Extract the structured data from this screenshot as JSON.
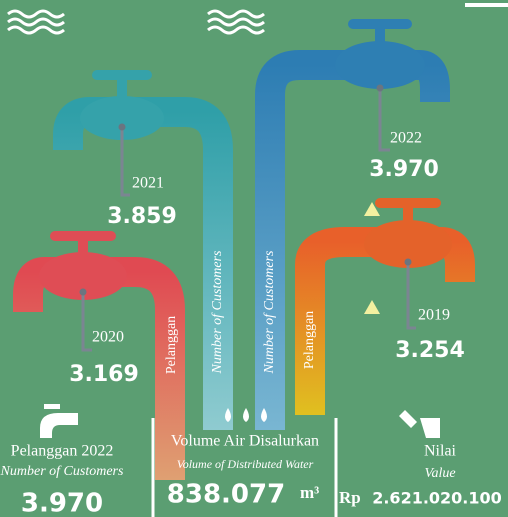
{
  "faucets": [
    {
      "year": "2021",
      "value": "3.859"
    },
    {
      "year": "2022",
      "value": "3.970"
    },
    {
      "year": "2020",
      "value": "3.169"
    },
    {
      "year": "2019",
      "value": "3.254"
    }
  ],
  "pipe_labels": [
    "Pelanggan",
    "Number of Customers",
    "Number of Customers",
    "Pelanggan"
  ],
  "stats": [
    {
      "title": "Pelanggan 2022",
      "subtitle": "Number of Customers",
      "value": "3.970"
    },
    {
      "title": "Volume Air Disalurkan",
      "subtitle": "Volume of Distributed Water",
      "value": "838.077",
      "unit": "m³"
    },
    {
      "title": "Nilai",
      "subtitle": "Value",
      "prefix": "Rp",
      "value": "2.621.020.100"
    }
  ]
}
